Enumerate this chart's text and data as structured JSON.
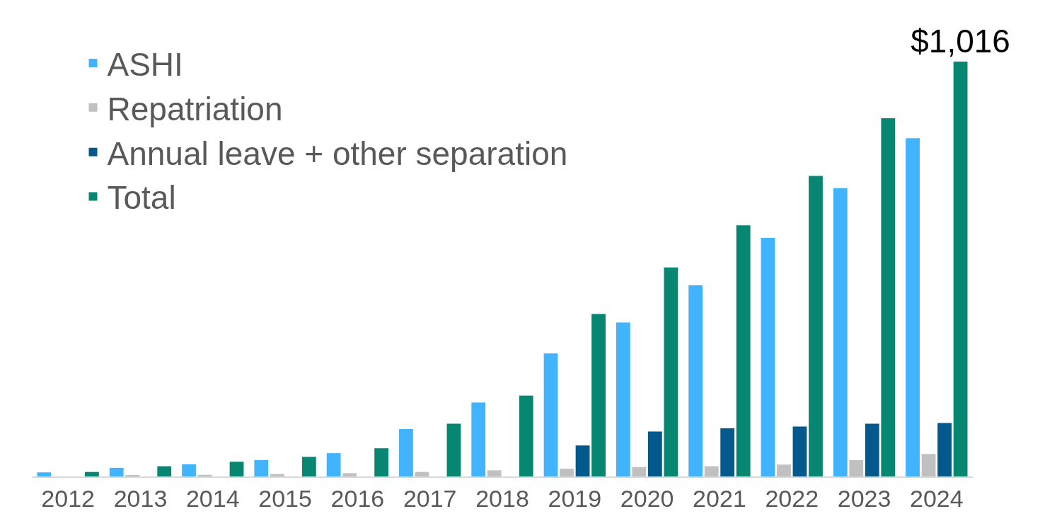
{
  "chart_data": {
    "type": "bar",
    "categories": [
      "2012",
      "2013",
      "2014",
      "2015",
      "2016",
      "2017",
      "2018",
      "2019",
      "2020",
      "2021",
      "2022",
      "2023",
      "2024"
    ],
    "series": [
      {
        "name": "ASHI",
        "color": "#41b3ff",
        "values": [
          10,
          21,
          30,
          40,
          57,
          116,
          181,
          301,
          377,
          468,
          584,
          706,
          828
        ]
      },
      {
        "name": "Repatriation",
        "color": "#c0c0c0",
        "values": [
          null,
          2,
          4,
          6,
          8,
          11,
          15,
          19,
          23,
          25,
          29,
          40,
          55
        ]
      },
      {
        "name": "Annual leave + other separation",
        "color": "#03588c",
        "values": [
          0,
          0,
          0,
          0,
          0,
          0,
          0,
          76,
          110,
          118,
          122,
          129,
          131
        ]
      },
      {
        "name": "Total",
        "color": "#078671",
        "values": [
          11,
          25,
          36,
          48,
          69,
          129,
          198,
          398,
          512,
          615,
          736,
          877,
          1016
        ],
        "value_labels": [
          null,
          null,
          null,
          null,
          null,
          null,
          null,
          null,
          null,
          null,
          null,
          null,
          "$1,016"
        ]
      }
    ],
    "legend": "top left"
  }
}
